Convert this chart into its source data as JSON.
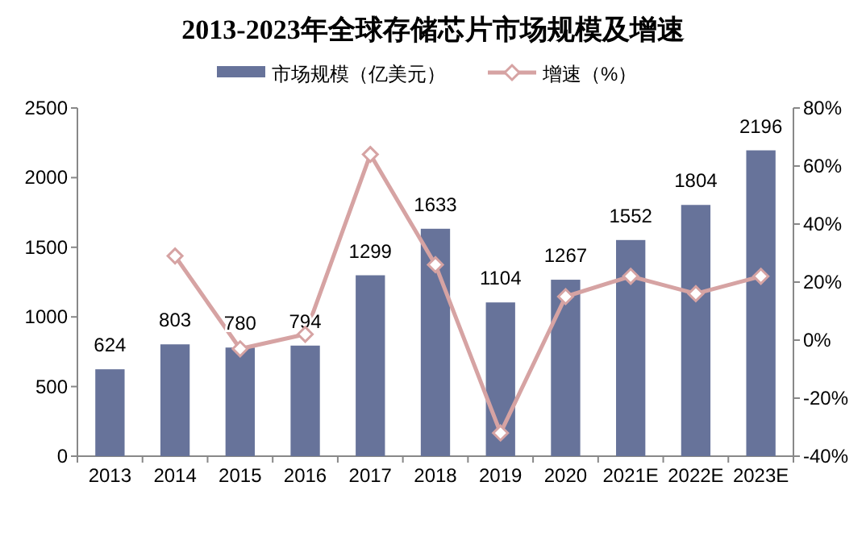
{
  "chart_data": {
    "type": "bar",
    "title": "2013-2023年全球存储芯片市场规模及增速",
    "categories": [
      "2013",
      "2014",
      "2015",
      "2016",
      "2017",
      "2018",
      "2019",
      "2020",
      "2021E",
      "2022E",
      "2023E"
    ],
    "series": [
      {
        "name": "市场规模（亿美元）",
        "color": "#67739a",
        "values": [
          624,
          803,
          780,
          794,
          1299,
          1633,
          1104,
          1267,
          1552,
          1804,
          2196
        ],
        "data_labels": true
      },
      {
        "name": "增速（%）",
        "type": "line",
        "axis": "y2",
        "color": "#d6a3a3",
        "marker": "diamond",
        "values": [
          null,
          29,
          -3,
          2,
          64,
          26,
          -32,
          15,
          22,
          16,
          22
        ]
      }
    ],
    "ylim": [
      0,
      2500
    ],
    "yticks": [
      0,
      500,
      1000,
      1500,
      2000,
      2500
    ],
    "y2lim": [
      -40,
      80
    ],
    "y2ticks": [
      {
        "value": -40,
        "label": "-40%"
      },
      {
        "value": -20,
        "label": "-20%"
      },
      {
        "value": 0,
        "label": "0%"
      },
      {
        "value": 20,
        "label": "20%"
      },
      {
        "value": 40,
        "label": "40%"
      },
      {
        "value": 60,
        "label": "60%"
      },
      {
        "value": 80,
        "label": "80%"
      }
    ],
    "legend": "top",
    "grid": false
  }
}
